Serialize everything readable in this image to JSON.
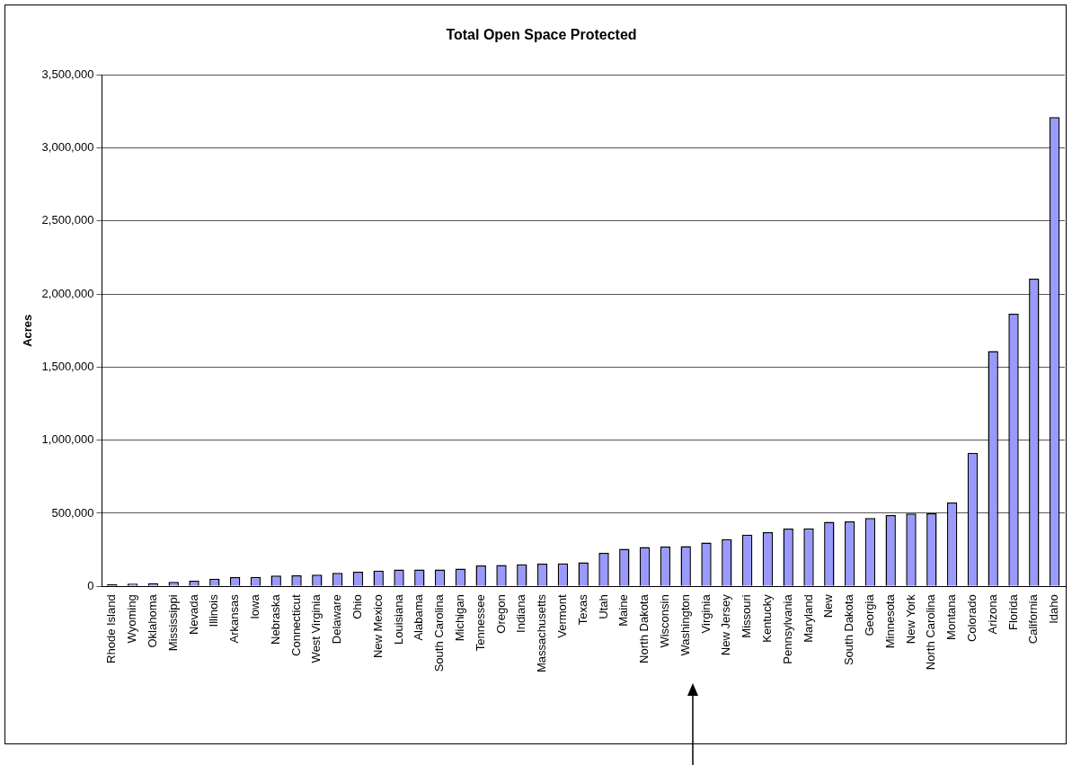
{
  "chart_data": {
    "type": "bar",
    "title": "Total Open Space Protected",
    "ylabel": "Acres",
    "categories": [
      "Rhode Island",
      "Wyoming",
      "Oklahoma",
      "Mississippi",
      "Nevada",
      "Illinois",
      "Arkansas",
      "Iowa",
      "Nebraska",
      "Connecticut",
      "West Virginia",
      "Delaware",
      "Ohio",
      "New Mexico",
      "Louisiana",
      "Alabama",
      "South Carolina",
      "Michigan",
      "Tennessee",
      "Oregon",
      "Indiana",
      "Massachusetts",
      "Vermont",
      "Texas",
      "Utah",
      "Maine",
      "North Dakota",
      "Wisconsin",
      "Washington",
      "Virginia",
      "New Jersey",
      "Missouri",
      "Kentucky",
      "Pennsylvania",
      "Maryland",
      "New",
      "South Dakota",
      "Georgia",
      "Minnesota",
      "New York",
      "North Carolina",
      "Montana",
      "Colorado",
      "Arizona",
      "Florida",
      "California",
      "Idaho"
    ],
    "values": [
      14000,
      18000,
      22000,
      31000,
      39000,
      53000,
      63000,
      65000,
      74000,
      76000,
      80000,
      92000,
      100000,
      108000,
      116000,
      116000,
      116000,
      121000,
      143000,
      147000,
      151000,
      155000,
      157000,
      165000,
      230000,
      257000,
      270000,
      272000,
      276000,
      300000,
      323000,
      354000,
      371000,
      395000,
      397000,
      441000,
      445000,
      468000,
      487000,
      498000,
      500000,
      574000,
      914000,
      1610000,
      1865000,
      2105000,
      3210000
    ],
    "color": "#9999ff",
    "ylim": [
      0,
      3500000
    ],
    "yticks": [
      0,
      {
        "value": 500000,
        "label": "500,000"
      },
      {
        "value": 1000000,
        "label": "1,000,000"
      },
      {
        "value": 1500000,
        "label": "1,500,000"
      },
      {
        "value": 2000000,
        "label": "2,000,000"
      },
      {
        "value": 2500000,
        "label": "2,500,000"
      },
      {
        "value": 3000000,
        "label": "3,000,000"
      },
      {
        "value": 3500000,
        "label": "3,500,000"
      }
    ],
    "grid": "y",
    "legend": false
  }
}
